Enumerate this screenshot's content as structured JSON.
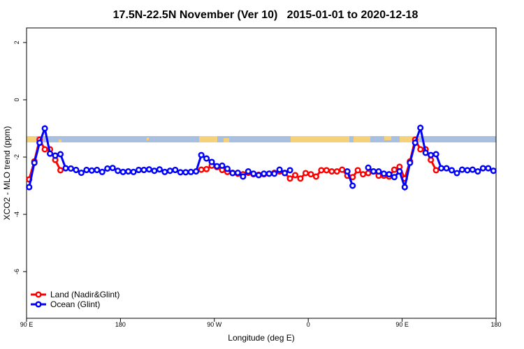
{
  "chart_data": {
    "type": "line",
    "title": "17.5N-22.5N November (Ver 10)   2015-01-01 to 2020-12-18",
    "xlabel": "Longitude (deg E)",
    "ylabel": "XCO2 - MLO trend (ppm)",
    "xlim": [
      90,
      540
    ],
    "ylim": [
      -7.63,
      2.51
    ],
    "xticks": [
      {
        "value": 90,
        "label": "90 E"
      },
      180,
      {
        "value": 270,
        "label": "90 W"
      },
      {
        "value": 360,
        "label": "0"
      },
      {
        "value": 450,
        "label": "90 E"
      },
      {
        "value": 540,
        "label": "180"
      }
    ],
    "yticks": [
      2,
      0,
      -2,
      -4,
      -6
    ],
    "legend": "bottom-left",
    "x": [
      92.5,
      97.5,
      102.5,
      107.5,
      112.5,
      117.5,
      122.5,
      127.5,
      132.5,
      137.5,
      142.5,
      147.5,
      152.5,
      157.5,
      162.5,
      167.5,
      172.5,
      177.5,
      182.5,
      187.5,
      192.5,
      197.5,
      202.5,
      207.5,
      212.5,
      217.5,
      222.5,
      227.5,
      232.5,
      237.5,
      242.5,
      247.5,
      252.5,
      257.5,
      262.5,
      267.5,
      272.5,
      277.5,
      282.5,
      287.5,
      292.5,
      297.5,
      302.5,
      307.5,
      312.5,
      317.5,
      322.5,
      327.5,
      332.5,
      337.5,
      342.5,
      347.5,
      352.5,
      357.5,
      362.5,
      367.5,
      372.5,
      377.5,
      382.5,
      387.5,
      392.5,
      397.5,
      402.5,
      407.5,
      412.5,
      417.5,
      422.5,
      427.5,
      432.5,
      437.5,
      442.5,
      447.5,
      452.5,
      457.5,
      462.5,
      467.5,
      472.5,
      477.5,
      482.5,
      487.5,
      492.5,
      497.5,
      502.5,
      507.5,
      512.5,
      517.5,
      522.5,
      527.5,
      532.5,
      537.5
    ],
    "series": [
      {
        "name": "Land (Nadir&Glint)",
        "color": "#ff0000",
        "values": [
          -2.78,
          -2.15,
          -1.39,
          -1.73,
          -1.73,
          -2.1,
          -2.46,
          null,
          null,
          null,
          null,
          null,
          null,
          null,
          null,
          null,
          null,
          null,
          null,
          null,
          null,
          null,
          null,
          null,
          null,
          null,
          null,
          null,
          null,
          null,
          null,
          null,
          null,
          -2.44,
          -2.42,
          -2.3,
          -2.35,
          -2.45,
          -2.52,
          -2.55,
          -2.58,
          -2.6,
          -2.55,
          -2.6,
          -2.62,
          -2.6,
          -2.58,
          -2.55,
          -2.5,
          -2.55,
          -2.75,
          -2.63,
          -2.75,
          -2.56,
          -2.6,
          -2.68,
          -2.46,
          -2.46,
          -2.5,
          -2.5,
          -2.44,
          -2.65,
          -2.7,
          -2.46,
          -2.6,
          -2.56,
          -2.5,
          -2.65,
          -2.65,
          -2.68,
          -2.44,
          -2.34,
          -2.75,
          -2.15,
          -1.39,
          -1.73,
          -1.73,
          -2.1,
          -2.46,
          null,
          null,
          null,
          null,
          null,
          null,
          null,
          null,
          null,
          null,
          null
        ]
      },
      {
        "name": "Ocean (Glint)",
        "color": "#0000ff",
        "values": [
          -3.05,
          -2.2,
          -1.5,
          -1.0,
          -1.88,
          -1.95,
          -1.9,
          -2.39,
          -2.4,
          -2.45,
          -2.55,
          -2.45,
          -2.47,
          -2.45,
          -2.52,
          -2.4,
          -2.38,
          -2.48,
          -2.52,
          -2.5,
          -2.52,
          -2.45,
          -2.45,
          -2.43,
          -2.48,
          -2.43,
          -2.52,
          -2.48,
          -2.45,
          -2.53,
          -2.53,
          -2.52,
          -2.5,
          -1.93,
          -2.05,
          -2.17,
          -2.32,
          -2.3,
          -2.41,
          -2.56,
          -2.55,
          -2.68,
          -2.5,
          -2.58,
          -2.63,
          -2.58,
          -2.58,
          -2.58,
          -2.44,
          -2.56,
          -2.46,
          null,
          null,
          null,
          null,
          null,
          null,
          null,
          null,
          null,
          null,
          -2.5,
          -3.0,
          null,
          null,
          -2.37,
          -2.5,
          -2.5,
          -2.58,
          -2.6,
          -2.7,
          -2.5,
          -3.05,
          -2.2,
          -1.5,
          -0.98,
          -1.85,
          -1.93,
          -1.9,
          -2.39,
          -2.39,
          -2.46,
          -2.56,
          -2.44,
          -2.46,
          -2.44,
          -2.5,
          -2.39,
          -2.39,
          -2.48
        ]
      }
    ]
  }
}
